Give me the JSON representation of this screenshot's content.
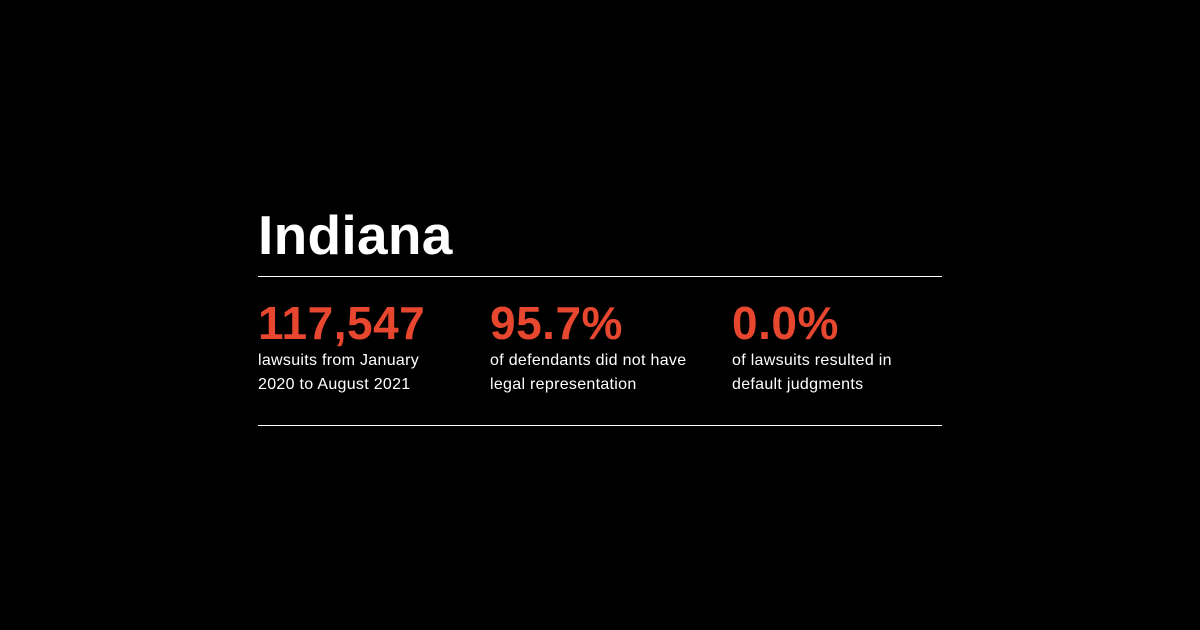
{
  "colors": {
    "background": "#000000",
    "text": "#ffffff",
    "accent": "#e8472f",
    "rule": "#ffffff"
  },
  "title": "Indiana",
  "stats": [
    {
      "value": "117,547",
      "description_lines": [
        "lawsuits from January",
        "2020 to August 2021"
      ]
    },
    {
      "value": "95.7%",
      "description_lines": [
        "of defendants did not have",
        "legal representation"
      ]
    },
    {
      "value": "0.0%",
      "description_lines": [
        "of lawsuits resulted in",
        "default judgments"
      ]
    }
  ]
}
